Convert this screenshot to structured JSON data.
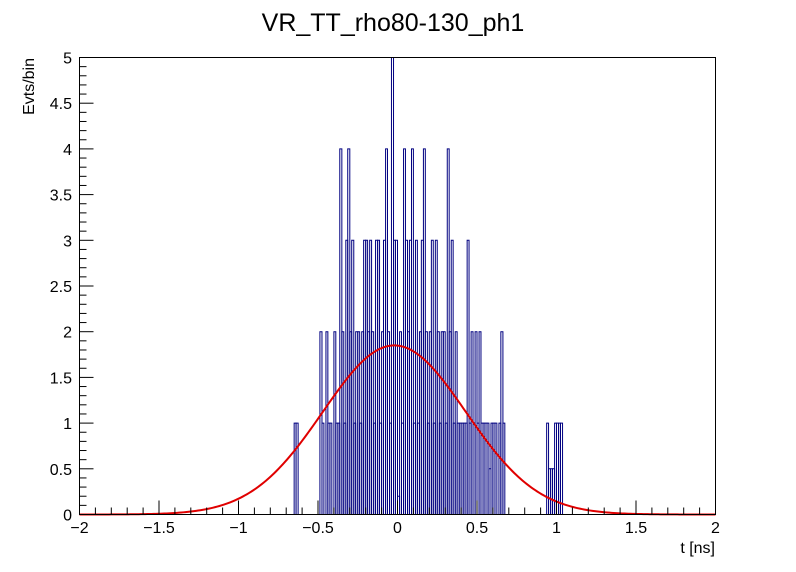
{
  "chart_data": {
    "type": "histogram",
    "title": "VR_TT_rho80-130_ph1",
    "xlabel": "t [ns]",
    "ylabel": "Evts/bin",
    "xlim": [
      -2,
      2
    ],
    "ylim": [
      0,
      5
    ],
    "x_ticks": [
      -2,
      -1.5,
      -1,
      -0.5,
      0,
      0.5,
      1,
      1.5,
      2
    ],
    "x_tick_labels": [
      "−2",
      "−1.5",
      "−1",
      "−0.5",
      "0",
      "0.5",
      "1",
      "1.5",
      "2"
    ],
    "y_ticks": [
      0,
      0.5,
      1,
      1.5,
      2,
      2.5,
      3,
      3.5,
      4,
      4.5,
      5
    ],
    "y_tick_labels": [
      "0",
      "0.5",
      "1",
      "1.5",
      "2",
      "2.5",
      "3",
      "3.5",
      "4",
      "4.5",
      "5"
    ],
    "grid": false,
    "histogram": {
      "name": "",
      "color": "#000080",
      "bins": [
        [
          -0.65,
          -0.638,
          1
        ],
        [
          -0.638,
          -0.625,
          1
        ],
        [
          -0.488,
          -0.475,
          2
        ],
        [
          -0.475,
          -0.463,
          1
        ],
        [
          -0.45,
          -0.438,
          2
        ],
        [
          -0.438,
          -0.425,
          1
        ],
        [
          -0.425,
          -0.413,
          1
        ],
        [
          -0.4,
          -0.388,
          2
        ],
        [
          -0.388,
          -0.375,
          1
        ],
        [
          -0.375,
          -0.363,
          1
        ],
        [
          -0.363,
          -0.35,
          4
        ],
        [
          -0.35,
          -0.338,
          2
        ],
        [
          -0.338,
          -0.325,
          1
        ],
        [
          -0.325,
          -0.313,
          3
        ],
        [
          -0.313,
          -0.3,
          4
        ],
        [
          -0.3,
          -0.288,
          2
        ],
        [
          -0.288,
          -0.275,
          3
        ],
        [
          -0.275,
          -0.263,
          1
        ],
        [
          -0.263,
          -0.25,
          2
        ],
        [
          -0.25,
          -0.238,
          2
        ],
        [
          -0.238,
          -0.225,
          1
        ],
        [
          -0.225,
          -0.213,
          2
        ],
        [
          -0.213,
          -0.2,
          3
        ],
        [
          -0.2,
          -0.188,
          3
        ],
        [
          -0.188,
          -0.175,
          2
        ],
        [
          -0.175,
          -0.163,
          3
        ],
        [
          -0.163,
          -0.15,
          2
        ],
        [
          -0.15,
          -0.138,
          1
        ],
        [
          -0.138,
          -0.125,
          3
        ],
        [
          -0.125,
          -0.113,
          3
        ],
        [
          -0.113,
          -0.1,
          1
        ],
        [
          -0.1,
          -0.088,
          2
        ],
        [
          -0.088,
          -0.075,
          3
        ],
        [
          -0.075,
          -0.063,
          4
        ],
        [
          -0.063,
          -0.05,
          2
        ],
        [
          -0.05,
          -0.038,
          1
        ],
        [
          -0.038,
          -0.025,
          5
        ],
        [
          -0.025,
          -0.013,
          3
        ],
        [
          -0.013,
          0.0,
          3
        ],
        [
          0.0,
          0.013,
          0.2
        ],
        [
          0.013,
          0.025,
          2
        ],
        [
          0.025,
          0.038,
          1
        ],
        [
          0.038,
          0.05,
          4
        ],
        [
          0.05,
          0.063,
          3
        ],
        [
          0.063,
          0.075,
          2
        ],
        [
          0.075,
          0.088,
          3
        ],
        [
          0.088,
          0.1,
          4
        ],
        [
          0.1,
          0.113,
          1
        ],
        [
          0.113,
          0.125,
          3
        ],
        [
          0.125,
          0.138,
          1
        ],
        [
          0.138,
          0.15,
          2
        ],
        [
          0.15,
          0.163,
          3
        ],
        [
          0.163,
          0.175,
          4
        ],
        [
          0.175,
          0.188,
          2
        ],
        [
          0.188,
          0.2,
          1
        ],
        [
          0.2,
          0.213,
          2
        ],
        [
          0.213,
          0.225,
          3
        ],
        [
          0.225,
          0.238,
          1
        ],
        [
          0.238,
          0.25,
          3
        ],
        [
          0.25,
          0.263,
          2
        ],
        [
          0.263,
          0.275,
          1
        ],
        [
          0.275,
          0.288,
          2
        ],
        [
          0.288,
          0.3,
          2
        ],
        [
          0.3,
          0.313,
          1
        ],
        [
          0.313,
          0.325,
          4
        ],
        [
          0.325,
          0.338,
          2
        ],
        [
          0.338,
          0.35,
          3
        ],
        [
          0.35,
          0.363,
          1
        ],
        [
          0.363,
          0.375,
          2
        ],
        [
          0.375,
          0.388,
          1
        ],
        [
          0.388,
          0.4,
          1
        ],
        [
          0.4,
          0.413,
          1
        ],
        [
          0.413,
          0.425,
          1
        ],
        [
          0.425,
          0.438,
          1
        ],
        [
          0.438,
          0.45,
          3
        ],
        [
          0.45,
          0.463,
          1
        ],
        [
          0.463,
          0.475,
          2
        ],
        [
          0.475,
          0.488,
          1
        ],
        [
          0.488,
          0.5,
          2
        ],
        [
          0.5,
          0.513,
          1
        ],
        [
          0.513,
          0.525,
          2
        ],
        [
          0.525,
          0.538,
          1
        ],
        [
          0.538,
          0.55,
          1
        ],
        [
          0.55,
          0.563,
          1
        ],
        [
          0.563,
          0.575,
          1
        ],
        [
          0.575,
          0.588,
          0.5
        ],
        [
          0.588,
          0.6,
          1
        ],
        [
          0.6,
          0.613,
          1
        ],
        [
          0.613,
          0.625,
          1
        ],
        [
          0.638,
          0.65,
          1
        ],
        [
          0.65,
          0.663,
          2
        ],
        [
          0.663,
          0.675,
          1
        ],
        [
          0.938,
          0.95,
          1
        ],
        [
          0.95,
          0.963,
          0.5
        ],
        [
          0.963,
          0.975,
          0.5
        ],
        [
          0.975,
          0.988,
          0.5
        ],
        [
          0.988,
          1.0,
          1
        ],
        [
          1.0,
          1.013,
          1
        ],
        [
          1.013,
          1.025,
          1
        ],
        [
          1.025,
          1.038,
          1
        ]
      ]
    },
    "fit": {
      "name": "",
      "type": "gaussian",
      "color": "#e00000",
      "amplitude": 1.85,
      "mean": -0.02,
      "sigma": 0.45
    }
  }
}
